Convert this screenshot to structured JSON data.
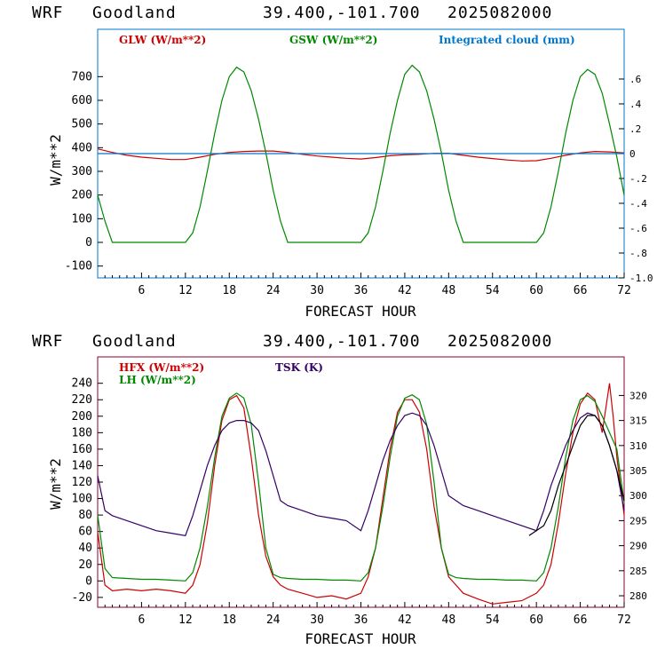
{
  "header1": {
    "model": "WRF",
    "station": "Goodland",
    "coords": "39.400,-101.700",
    "init": "2025082000"
  },
  "header2": {
    "model": "WRF",
    "station": "Goodland",
    "coords": "39.400,-101.700",
    "init": "2025082000"
  },
  "colors": {
    "red": "#cc0000",
    "green": "#008800",
    "blue": "#0077cc",
    "purple": "#330066",
    "black": "#000000",
    "topframe": "#0077cc",
    "botframe": "#880033"
  },
  "chart_data": [
    {
      "type": "line",
      "xlabel": "FORECAST HOUR",
      "ylabel": "W/m**2",
      "xlim": [
        0,
        72
      ],
      "ylim": [
        -150,
        900
      ],
      "x_ticks": [
        6,
        12,
        18,
        24,
        30,
        36,
        42,
        48,
        54,
        60,
        66,
        72
      ],
      "y_ticks": [
        -100,
        0,
        100,
        200,
        300,
        400,
        500,
        600,
        700
      ],
      "y2lim": [
        -1.0,
        1.0
      ],
      "y2_ticks": [
        ".6",
        ".4",
        ".2",
        "0",
        "-.2",
        "-.4",
        "-.6",
        "-.8",
        "-1.0"
      ],
      "series": [
        {
          "name": "GLW (W/m**2)",
          "color": "#cc0000",
          "axis": "left",
          "x": [
            0,
            2,
            4,
            6,
            8,
            10,
            12,
            14,
            16,
            18,
            20,
            22,
            24,
            26,
            28,
            30,
            32,
            34,
            36,
            38,
            40,
            42,
            44,
            46,
            48,
            50,
            52,
            54,
            56,
            58,
            60,
            62,
            64,
            66,
            68,
            70,
            72
          ],
          "values": [
            395,
            380,
            368,
            360,
            355,
            350,
            350,
            360,
            372,
            380,
            384,
            386,
            386,
            380,
            372,
            365,
            360,
            355,
            352,
            358,
            366,
            370,
            372,
            376,
            376,
            368,
            360,
            354,
            348,
            344,
            345,
            355,
            368,
            378,
            384,
            382,
            378
          ]
        },
        {
          "name": "GSW (W/m**2)",
          "color": "#008800",
          "axis": "left",
          "x": [
            0,
            1,
            2,
            12,
            13,
            14,
            15,
            16,
            17,
            18,
            19,
            20,
            21,
            22,
            23,
            24,
            25,
            26,
            36,
            37,
            38,
            39,
            40,
            41,
            42,
            43,
            44,
            45,
            46,
            47,
            48,
            49,
            50,
            60,
            61,
            62,
            63,
            64,
            65,
            66,
            67,
            68,
            69,
            70,
            71,
            72
          ],
          "values": [
            200,
            90,
            0,
            0,
            40,
            150,
            300,
            460,
            600,
            700,
            740,
            720,
            640,
            520,
            380,
            220,
            90,
            0,
            0,
            40,
            150,
            300,
            460,
            600,
            710,
            748,
            720,
            640,
            520,
            380,
            220,
            90,
            0,
            0,
            40,
            150,
            300,
            460,
            600,
            700,
            730,
            710,
            630,
            500,
            360,
            200
          ]
        },
        {
          "name": "Integrated cloud (mm)",
          "color": "#0077cc",
          "axis": "right",
          "x": [
            0,
            72
          ],
          "values": [
            0.0,
            0.0
          ]
        }
      ]
    },
    {
      "type": "line",
      "xlabel": "FORECAST HOUR",
      "ylabel": "W/m**2",
      "xlim": [
        0,
        72
      ],
      "ylim": [
        -32,
        272
      ],
      "x_ticks": [
        6,
        12,
        18,
        24,
        30,
        36,
        42,
        48,
        54,
        60,
        66,
        72
      ],
      "y_ticks": [
        -20,
        0,
        20,
        40,
        60,
        80,
        100,
        120,
        140,
        160,
        180,
        200,
        220,
        240
      ],
      "y2lim": [
        277.7,
        327.7
      ],
      "y2_ticks": [
        280,
        285,
        290,
        295,
        300,
        305,
        310,
        315,
        320
      ],
      "series": [
        {
          "name": "HFX (W/m**2)",
          "color": "#cc0000",
          "axis": "left",
          "x": [
            0,
            1,
            2,
            4,
            6,
            8,
            10,
            12,
            13,
            14,
            15,
            16,
            17,
            18,
            19,
            20,
            21,
            22,
            23,
            24,
            25,
            26,
            28,
            30,
            32,
            34,
            36,
            37,
            38,
            39,
            40,
            41,
            42,
            43,
            44,
            45,
            46,
            47,
            48,
            49,
            50,
            52,
            54,
            56,
            58,
            60,
            61,
            62,
            63,
            64,
            65,
            66,
            67,
            68,
            69,
            70,
            70.5,
            71,
            72
          ],
          "values": [
            60,
            -5,
            -12,
            -10,
            -12,
            -10,
            -12,
            -15,
            -5,
            20,
            70,
            140,
            195,
            220,
            225,
            210,
            150,
            80,
            30,
            5,
            -5,
            -10,
            -15,
            -20,
            -18,
            -22,
            -15,
            5,
            40,
            100,
            160,
            205,
            220,
            220,
            205,
            160,
            90,
            40,
            5,
            -5,
            -15,
            -22,
            -28,
            -26,
            -24,
            -15,
            -5,
            20,
            70,
            130,
            180,
            215,
            228,
            220,
            180,
            240,
            200,
            150,
            80
          ]
        },
        {
          "name": "LH  (W/m**2)",
          "color": "#008800",
          "axis": "left",
          "x": [
            0,
            1,
            2,
            4,
            6,
            8,
            10,
            12,
            13,
            14,
            15,
            16,
            17,
            18,
            19,
            20,
            21,
            22,
            23,
            24,
            25,
            26,
            28,
            30,
            32,
            34,
            36,
            37,
            38,
            39,
            40,
            41,
            42,
            43,
            44,
            45,
            46,
            47,
            48,
            49,
            50,
            52,
            54,
            56,
            58,
            60,
            61,
            62,
            63,
            64,
            65,
            66,
            67,
            68,
            69,
            70,
            71,
            72
          ],
          "values": [
            80,
            15,
            4,
            3,
            2,
            2,
            1,
            0,
            10,
            40,
            90,
            150,
            200,
            222,
            228,
            222,
            190,
            120,
            40,
            8,
            4,
            3,
            2,
            2,
            1,
            1,
            0,
            10,
            40,
            90,
            150,
            200,
            222,
            226,
            220,
            190,
            120,
            40,
            8,
            4,
            3,
            2,
            2,
            1,
            1,
            0,
            10,
            40,
            90,
            150,
            195,
            220,
            225,
            218,
            200,
            180,
            160,
            95
          ]
        },
        {
          "name": "TSK (K)",
          "color": "#330066",
          "axis": "right",
          "x": [
            0,
            1,
            2,
            4,
            6,
            8,
            10,
            12,
            13,
            14,
            15,
            16,
            17,
            18,
            19,
            20,
            21,
            22,
            23,
            24,
            25,
            26,
            28,
            30,
            32,
            34,
            36,
            37,
            38,
            39,
            40,
            41,
            42,
            43,
            44,
            45,
            46,
            47,
            48,
            49,
            50,
            52,
            54,
            56,
            58,
            60,
            61,
            62,
            63,
            64,
            65,
            66,
            67,
            68,
            69,
            70,
            71,
            72
          ],
          "values": [
            304,
            297,
            296,
            295,
            294,
            293,
            292.5,
            292,
            296,
            301,
            306,
            310,
            313,
            314.5,
            315,
            315,
            314.5,
            313,
            309,
            304,
            299,
            298,
            297,
            296,
            295.5,
            295,
            293,
            297,
            302,
            307,
            311,
            314,
            316,
            316.5,
            316,
            314,
            310,
            305,
            300,
            299,
            298,
            297,
            296,
            295,
            294,
            293,
            297,
            302,
            306,
            310,
            313,
            315.5,
            316.5,
            316,
            314,
            310,
            305,
            297
          ]
        },
        {
          "name": "",
          "color": "#000000",
          "axis": "right",
          "x": [
            59,
            61,
            62,
            63,
            64,
            65,
            66,
            67,
            68,
            69,
            70,
            71,
            72
          ],
          "values": [
            292,
            294,
            297,
            302,
            306,
            310,
            314,
            316,
            316,
            314,
            310,
            305,
            299
          ]
        }
      ]
    }
  ]
}
